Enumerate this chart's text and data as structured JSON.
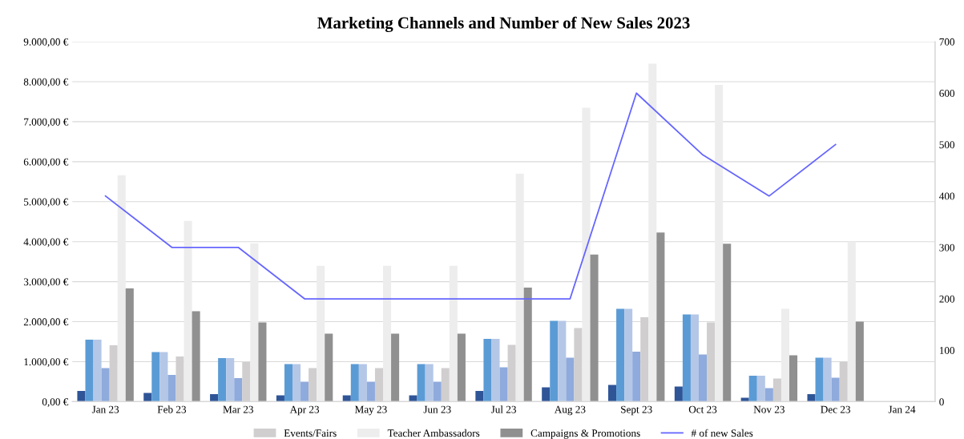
{
  "chart_data": {
    "type": "bar",
    "title": "Marketing Channels and Number of New Sales 2023",
    "categories": [
      "Jan 23",
      "Feb 23",
      "Mar 23",
      "Apr 23",
      "May 23",
      "Jun 23",
      "Jul 23",
      "Aug 23",
      "Sept 23",
      "Oct 23",
      "Nov 23",
      "Dec 23",
      "Jan 24"
    ],
    "series": [
      {
        "color": "#2f5597",
        "values": [
          270,
          220,
          190,
          160,
          160,
          160,
          270,
          360,
          420,
          380,
          100,
          190,
          null
        ]
      },
      {
        "color": "#5b9bd5",
        "values": [
          1550,
          1240,
          1090,
          940,
          940,
          940,
          1570,
          2020,
          2320,
          2180,
          650,
          1100,
          null
        ]
      },
      {
        "color": "#b4c7e7",
        "values": [
          1550,
          1240,
          1090,
          940,
          940,
          940,
          1570,
          2020,
          2320,
          2180,
          650,
          1100,
          null
        ]
      },
      {
        "color": "#8faadc",
        "values": [
          840,
          670,
          590,
          500,
          500,
          500,
          860,
          1100,
          1250,
          1180,
          340,
          600,
          null
        ]
      },
      {
        "name": "Events/Fairs",
        "color": "#d0cece",
        "values": [
          1410,
          1130,
          990,
          840,
          840,
          840,
          1420,
          1840,
          2110,
          1980,
          580,
          1000,
          null
        ]
      },
      {
        "name": "Teacher Ambassadors",
        "color": "#ededed",
        "values": [
          5660,
          4520,
          3960,
          3400,
          3400,
          3400,
          5700,
          7350,
          8450,
          7920,
          2320,
          4000,
          null
        ]
      },
      {
        "name": "Campaigns & Promotions",
        "color": "#909090",
        "values": [
          2830,
          2260,
          1980,
          1700,
          1700,
          1700,
          2850,
          3680,
          4230,
          3950,
          1160,
          2000,
          null
        ]
      },
      {
        "name": "# of new Sales",
        "type": "line",
        "axis": "y2",
        "color": "#6666ff",
        "values": [
          400,
          300,
          300,
          200,
          200,
          200,
          200,
          200,
          600,
          480,
          400,
          500,
          null
        ]
      }
    ],
    "ylim": [
      0,
      9000
    ],
    "yticks": [
      {
        "value": 0,
        "label": "0,00 €"
      },
      {
        "value": 1000,
        "label": "1.000,00 €"
      },
      {
        "value": 2000,
        "label": "2.000,00 €"
      },
      {
        "value": 3000,
        "label": "3.000,00 €"
      },
      {
        "value": 4000,
        "label": "4.000,00 €"
      },
      {
        "value": 5000,
        "label": "5.000,00 €"
      },
      {
        "value": 6000,
        "label": "6.000,00 €"
      },
      {
        "value": 7000,
        "label": "7.000,00 €"
      },
      {
        "value": 8000,
        "label": "8.000,00 €"
      },
      {
        "value": 9000,
        "label": "9.000,00 €"
      }
    ],
    "y2lim": [
      0,
      700
    ],
    "y2ticks": [
      0,
      100,
      200,
      300,
      400,
      500,
      600,
      700
    ],
    "grid": "y",
    "legend": "bottom",
    "marker": "none",
    "line_style": "solid"
  }
}
